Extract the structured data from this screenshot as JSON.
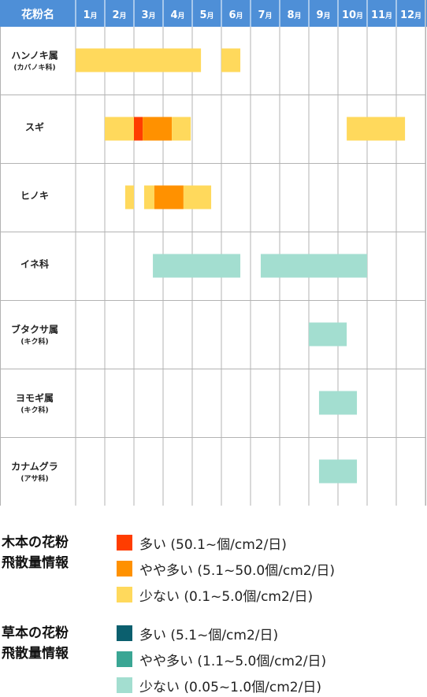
{
  "header": {
    "pollen_name_label": "花粉名"
  },
  "colors": {
    "header_bg": "#4e8fd7",
    "grid": "#b3b3b3",
    "tree_many": "#ff3d00",
    "tree_some": "#ff9100",
    "tree_few": "#ffd95c",
    "grass_many": "#0b5f6e",
    "grass_some": "#3aa694",
    "grass_few": "#a3ded0"
  },
  "chart_data": {
    "type": "gantt",
    "months": [
      "1月",
      "2月",
      "3月",
      "4月",
      "5月",
      "6月",
      "7月",
      "8月",
      "9月",
      "10月",
      "11月",
      "12月"
    ],
    "month_numbers": [
      "1",
      "2",
      "3",
      "4",
      "5",
      "6",
      "7",
      "8",
      "9",
      "10",
      "11",
      "12"
    ],
    "month_suffix": "月",
    "rows": [
      {
        "name": "ハンノキ属",
        "sub": "(カバノキ科)",
        "category": "tree",
        "segments": [
          {
            "start": 1.0,
            "end": 5.3,
            "level": "few"
          },
          {
            "start": 6.0,
            "end": 6.65,
            "level": "few"
          }
        ]
      },
      {
        "name": "スギ",
        "sub": "",
        "category": "tree",
        "segments": [
          {
            "start": 2.0,
            "end": 3.0,
            "level": "few"
          },
          {
            "start": 3.0,
            "end": 3.3,
            "level": "many"
          },
          {
            "start": 3.3,
            "end": 4.3,
            "level": "some"
          },
          {
            "start": 4.3,
            "end": 4.95,
            "level": "few"
          },
          {
            "start": 10.3,
            "end": 12.3,
            "level": "few"
          }
        ]
      },
      {
        "name": "ヒノキ",
        "sub": "",
        "category": "tree",
        "segments": [
          {
            "start": 2.7,
            "end": 3.0,
            "level": "few"
          },
          {
            "start": 3.35,
            "end": 3.7,
            "level": "few"
          },
          {
            "start": 3.7,
            "end": 4.7,
            "level": "some"
          },
          {
            "start": 4.7,
            "end": 5.65,
            "level": "few"
          }
        ]
      },
      {
        "name": "イネ科",
        "sub": "",
        "category": "grass",
        "segments": [
          {
            "start": 3.65,
            "end": 6.65,
            "level": "few"
          },
          {
            "start": 7.35,
            "end": 11.0,
            "level": "few"
          }
        ]
      },
      {
        "name": "ブタクサ属",
        "sub": "(キク科)",
        "category": "grass",
        "segments": [
          {
            "start": 9.0,
            "end": 10.3,
            "level": "few"
          }
        ]
      },
      {
        "name": "ヨモギ属",
        "sub": "(キク科)",
        "category": "grass",
        "segments": [
          {
            "start": 9.35,
            "end": 10.65,
            "level": "few"
          }
        ]
      },
      {
        "name": "カナムグラ",
        "sub": "(アサ科)",
        "category": "grass",
        "segments": [
          {
            "start": 9.35,
            "end": 10.65,
            "level": "few"
          }
        ]
      }
    ]
  },
  "legend": {
    "tree": {
      "title_line1": "木本の花粉",
      "title_line2": "飛散量情報",
      "items": [
        {
          "label": "多い (50.1~個/cm2/日)",
          "color": "#ff3d00"
        },
        {
          "label": "やや多い (5.1~50.0個/cm2/日)",
          "color": "#ff9100"
        },
        {
          "label": "少ない (0.1~5.0個/cm2/日)",
          "color": "#ffd95c"
        }
      ]
    },
    "grass": {
      "title_line1": "草本の花粉",
      "title_line2": "飛散量情報",
      "items": [
        {
          "label": "多い (5.1~個/cm2/日)",
          "color": "#0b5f6e"
        },
        {
          "label": "やや多い (1.1~5.0個/cm2/日)",
          "color": "#3aa694"
        },
        {
          "label": "少ない (0.05~1.0個/cm2/日)",
          "color": "#a3ded0"
        }
      ]
    }
  }
}
